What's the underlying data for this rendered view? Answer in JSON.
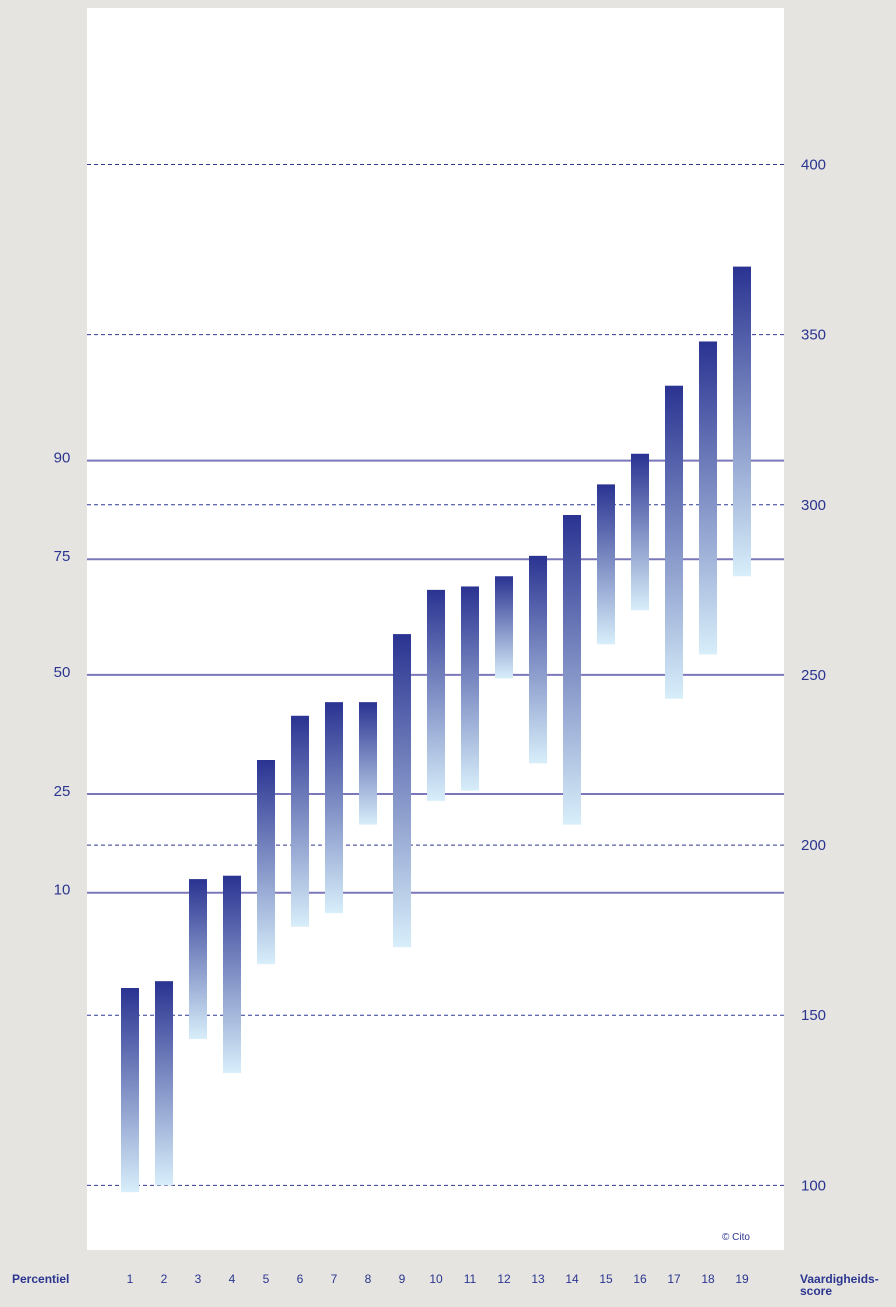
{
  "chart_data": {
    "type": "bar",
    "subtype": "floating-range",
    "xlabel": "Percentiel",
    "ylabel": "Vaardigheids-score",
    "ylabel_lines": [
      "Vaardigheids-",
      "score"
    ],
    "categories": [
      "1",
      "2",
      "3",
      "4",
      "5",
      "6",
      "7",
      "8",
      "9",
      "10",
      "11",
      "12",
      "13",
      "14",
      "15",
      "16",
      "17",
      "18",
      "19"
    ],
    "ranges": [
      {
        "low": 98,
        "high": 158
      },
      {
        "low": 100,
        "high": 160
      },
      {
        "low": 143,
        "high": 190
      },
      {
        "low": 133,
        "high": 191
      },
      {
        "low": 165,
        "high": 225
      },
      {
        "low": 176,
        "high": 238
      },
      {
        "low": 180,
        "high": 242
      },
      {
        "low": 206,
        "high": 242
      },
      {
        "low": 170,
        "high": 262
      },
      {
        "low": 213,
        "high": 275
      },
      {
        "low": 216,
        "high": 276
      },
      {
        "low": 249,
        "high": 279
      },
      {
        "low": 224,
        "high": 285
      },
      {
        "low": 206,
        "high": 297
      },
      {
        "low": 259,
        "high": 306
      },
      {
        "low": 269,
        "high": 315
      },
      {
        "low": 243,
        "high": 335
      },
      {
        "low": 256,
        "high": 348
      },
      {
        "low": 279,
        "high": 370
      }
    ],
    "ylim": [
      81,
      446
    ],
    "right_axis_ticks": [
      100,
      150,
      200,
      250,
      300,
      350,
      400
    ],
    "percentile_lines": [
      {
        "label": "10",
        "value": 186
      },
      {
        "label": "25",
        "value": 215
      },
      {
        "label": "50",
        "value": 250
      },
      {
        "label": "75",
        "value": 284
      },
      {
        "label": "90",
        "value": 313
      }
    ],
    "gridlines": "dashed at right-axis ticks",
    "colors": {
      "bar_top": "#2a3391",
      "bar_bottom": "#d8eefa",
      "percentile_line": "#7a78bb",
      "dashed_line": "#2f3a8f",
      "text": "#2b3590",
      "plot_bg": "#ffffff",
      "page_bg": "#e5e4e0"
    },
    "copyright": "© Cito"
  }
}
